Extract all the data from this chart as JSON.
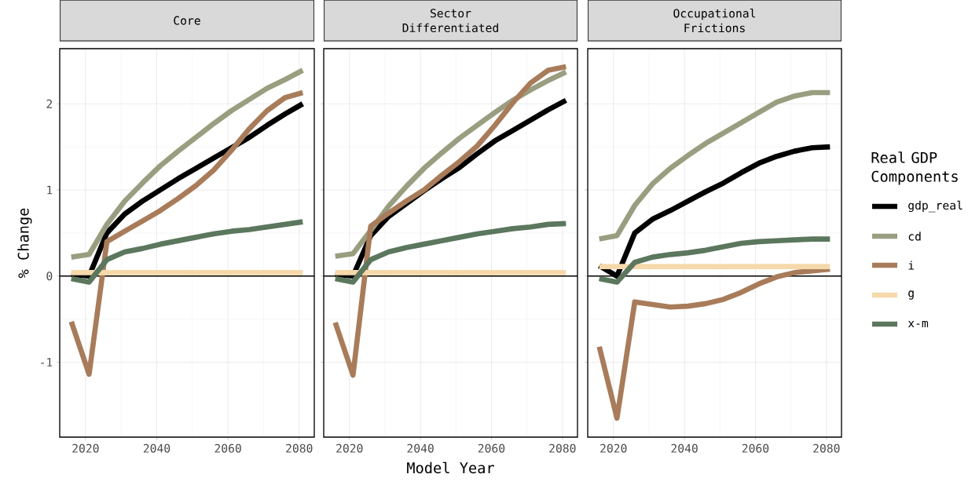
{
  "chart_data": [
    {
      "type": "line",
      "title": "Core",
      "ylabel": "% Change",
      "x": [
        2016,
        2021,
        2026,
        2031,
        2036,
        2041,
        2046,
        2051,
        2056,
        2061,
        2066,
        2071,
        2076,
        2081
      ],
      "xlim": [
        2012.75,
        2084.25
      ],
      "ylim": [
        -1.87,
        2.64
      ],
      "xticks": [
        2020,
        2040,
        2060,
        2080
      ],
      "yticks": [
        -1,
        0,
        1,
        2
      ],
      "grid": true,
      "legend": false,
      "ref_lines": [
        {
          "axis": "y",
          "value": 0,
          "color": "#000000"
        }
      ],
      "series": [
        {
          "color": "#000000",
          "values": [
            0.02,
            0.0,
            0.5,
            0.72,
            0.87,
            1.0,
            1.13,
            1.25,
            1.37,
            1.49,
            1.61,
            1.75,
            1.88,
            2.0
          ]
        },
        {
          "color": "#9a9e80",
          "values": [
            0.22,
            0.25,
            0.6,
            0.87,
            1.08,
            1.28,
            1.45,
            1.61,
            1.77,
            1.92,
            2.05,
            2.18,
            2.28,
            2.39
          ]
        },
        {
          "color": "#a87c5a",
          "values": [
            -0.53,
            -1.14,
            0.4,
            0.52,
            0.64,
            0.76,
            0.9,
            1.05,
            1.23,
            1.46,
            1.71,
            1.92,
            2.07,
            2.13
          ]
        },
        {
          "color": "#f5d9ab",
          "values": [
            0.04,
            0.04,
            0.04,
            0.04,
            0.04,
            0.04,
            0.04,
            0.04,
            0.04,
            0.04,
            0.04,
            0.04,
            0.04,
            0.04
          ]
        },
        {
          "color": "#5b775d",
          "values": [
            -0.03,
            -0.07,
            0.19,
            0.28,
            0.32,
            0.37,
            0.41,
            0.45,
            0.49,
            0.52,
            0.54,
            0.57,
            0.6,
            0.63
          ]
        }
      ]
    },
    {
      "type": "line",
      "title": "Sector Differentiated",
      "xlabel": "Model Year",
      "x": [
        2016,
        2021,
        2026,
        2031,
        2036,
        2041,
        2046,
        2051,
        2056,
        2061,
        2066,
        2071,
        2076,
        2081
      ],
      "xlim": [
        2012.75,
        2084.25
      ],
      "ylim": [
        -1.87,
        2.64
      ],
      "xticks": [
        2020,
        2040,
        2060,
        2080
      ],
      "yticks": [
        -1,
        0,
        1,
        2
      ],
      "tick_labels": "x",
      "grid": true,
      "legend": false,
      "ref_lines": [
        {
          "axis": "y",
          "value": 0,
          "color": "#000000"
        }
      ],
      "series": [
        {
          "color": "#000000",
          "values": [
            0.02,
            0.0,
            0.47,
            0.69,
            0.84,
            0.99,
            1.13,
            1.26,
            1.42,
            1.57,
            1.69,
            1.81,
            1.93,
            2.04
          ]
        },
        {
          "color": "#9a9e80",
          "values": [
            0.23,
            0.26,
            0.53,
            0.81,
            1.04,
            1.25,
            1.43,
            1.6,
            1.75,
            1.9,
            2.04,
            2.16,
            2.27,
            2.37
          ]
        },
        {
          "color": "#a87c5a",
          "values": [
            -0.54,
            -1.15,
            0.58,
            0.73,
            0.87,
            1.0,
            1.17,
            1.33,
            1.51,
            1.75,
            2.01,
            2.24,
            2.39,
            2.43
          ]
        },
        {
          "color": "#f5d9ab",
          "values": [
            0.04,
            0.04,
            0.04,
            0.04,
            0.04,
            0.04,
            0.04,
            0.04,
            0.04,
            0.04,
            0.04,
            0.04,
            0.04,
            0.04
          ]
        },
        {
          "color": "#5b775d",
          "values": [
            -0.03,
            -0.07,
            0.19,
            0.28,
            0.33,
            0.37,
            0.41,
            0.45,
            0.49,
            0.52,
            0.55,
            0.57,
            0.6,
            0.61
          ]
        }
      ]
    },
    {
      "type": "line",
      "title": "Occupational Frictions",
      "legend_title": "Real GDP Components",
      "x": [
        2016,
        2021,
        2026,
        2031,
        2036,
        2041,
        2046,
        2051,
        2056,
        2061,
        2066,
        2071,
        2076,
        2081
      ],
      "xlim": [
        2012.75,
        2084.25
      ],
      "ylim": [
        -1.87,
        2.64
      ],
      "xticks": [
        2020,
        2040,
        2060,
        2080
      ],
      "yticks": [
        -1,
        0,
        1,
        2
      ],
      "tick_labels": "x",
      "grid": true,
      "legend": "right",
      "ref_lines": [
        {
          "axis": "y",
          "value": 0,
          "color": "#000000"
        }
      ],
      "series": [
        {
          "name": "gdp_real",
          "color": "#000000",
          "values": [
            0.12,
            0.0,
            0.5,
            0.66,
            0.76,
            0.87,
            0.98,
            1.08,
            1.2,
            1.31,
            1.39,
            1.45,
            1.49,
            1.5
          ]
        },
        {
          "name": "cd",
          "color": "#9a9e80",
          "values": [
            0.43,
            0.47,
            0.82,
            1.07,
            1.25,
            1.4,
            1.54,
            1.66,
            1.78,
            1.9,
            2.02,
            2.09,
            2.13,
            2.13
          ]
        },
        {
          "name": "i",
          "color": "#a87c5a",
          "values": [
            -0.82,
            -1.65,
            -0.3,
            -0.33,
            -0.36,
            -0.35,
            -0.32,
            -0.27,
            -0.19,
            -0.09,
            -0.01,
            0.04,
            0.06,
            0.08
          ]
        },
        {
          "name": "g",
          "color": "#f5d9ab",
          "values": [
            0.11,
            0.11,
            0.11,
            0.11,
            0.11,
            0.11,
            0.11,
            0.11,
            0.11,
            0.11,
            0.11,
            0.11,
            0.11,
            0.11
          ]
        },
        {
          "name": "x-m",
          "color": "#5b775d",
          "values": [
            -0.03,
            -0.07,
            0.16,
            0.22,
            0.25,
            0.27,
            0.3,
            0.34,
            0.38,
            0.4,
            0.41,
            0.42,
            0.43,
            0.43
          ]
        }
      ]
    }
  ]
}
